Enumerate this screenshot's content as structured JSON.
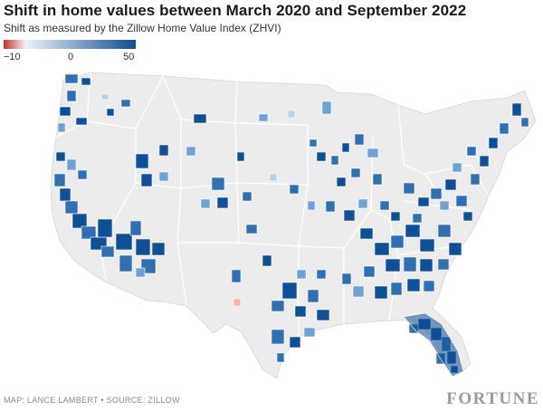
{
  "title": "Shift in home values between March 2020 and September 2022",
  "subtitle": "Shift as measured by the Zillow Home Value Index (ZHVI)",
  "legend": {
    "ticks": [
      "−10",
      "0",
      "50"
    ],
    "colors": {
      "low": "#c8312c",
      "zero": "#eef2f6",
      "high": "#0d4f93"
    },
    "range": [
      -10,
      50
    ]
  },
  "map": {
    "colors": {
      "base": "#ececec",
      "border": "#ffffff",
      "deep": "#0f4f95",
      "mid": "#2f6fb2",
      "light": "#6fa2d2",
      "pale": "#b9d2e8",
      "neg": "#f2b9a1"
    },
    "regions_with_data": [
      "Florida",
      "Southeast",
      "Mountain West",
      "California",
      "Northeast corridor",
      "Texas",
      "Pacific Northwest",
      "Midwest metros"
    ]
  },
  "footer": {
    "credit": "MAP: LANCE LAMBERT • SOURCE: ZILLOW",
    "logo": "FORTUNE"
  }
}
